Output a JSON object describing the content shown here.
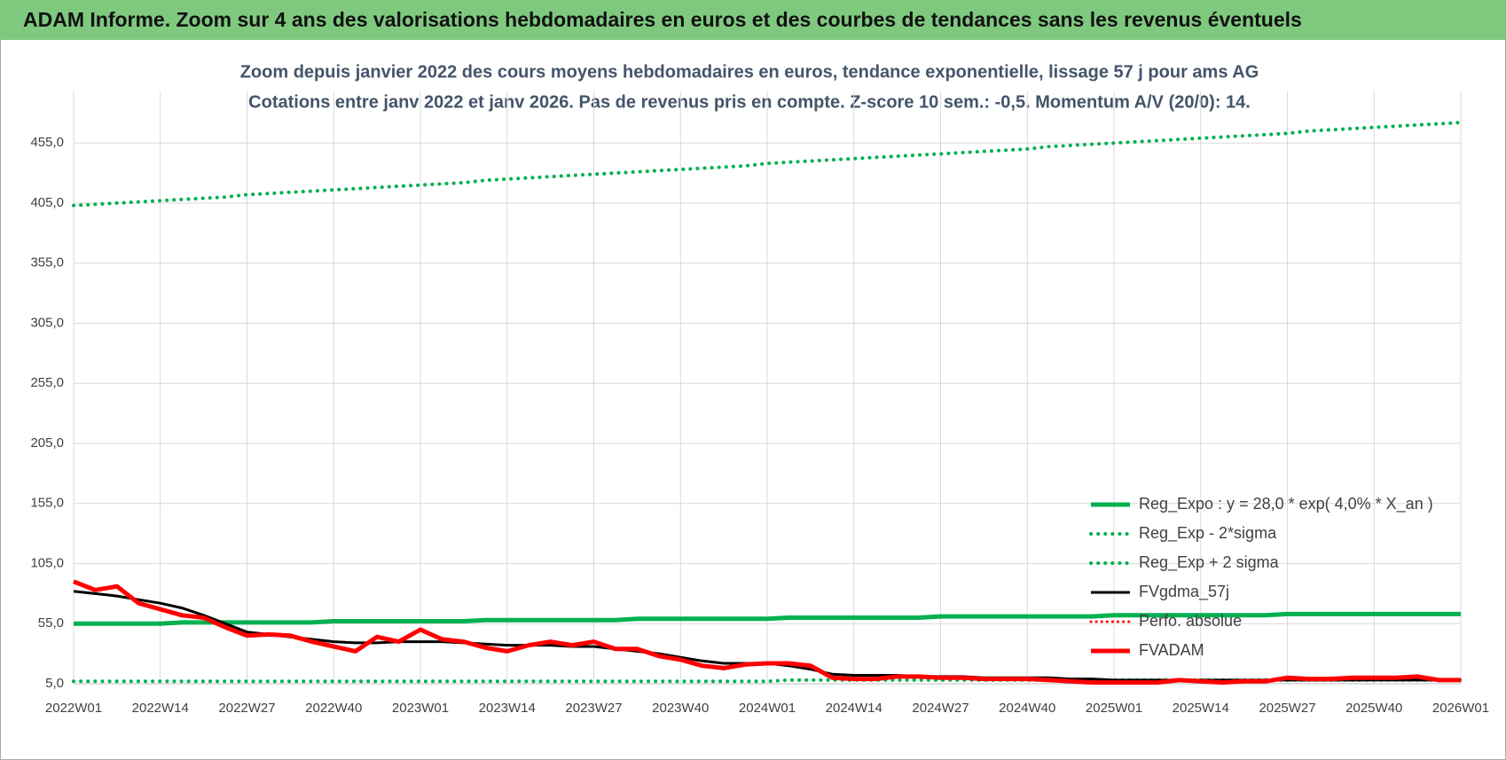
{
  "header": {
    "title": "ADAM Informe. Zoom sur 4 ans des valorisations hebdomadaires en euros et des courbes de tendances sans les revenus éventuels"
  },
  "chart_data": {
    "type": "line",
    "title": "Zoom depuis janvier 2022 des cours moyens hebdomadaires en euros, tendance exponentielle, lissage 57 j pour ams AG",
    "subtitle": "Cotations entre janv 2022 et janv 2026. Pas de revenus pris en compte. Z-score 10 sem.: -0,5. Momentum A/V (20/0): 14.",
    "categories": [
      "2022W01",
      null,
      null,
      null,
      "2022W14",
      null,
      null,
      null,
      "2022W27",
      null,
      null,
      null,
      "2022W40",
      null,
      null,
      null,
      "2023W01",
      null,
      null,
      null,
      "2023W14",
      null,
      null,
      null,
      "2023W27",
      null,
      null,
      null,
      "2023W40",
      null,
      null,
      null,
      "2024W01",
      null,
      null,
      null,
      "2024W14",
      null,
      null,
      null,
      "2024W27",
      null,
      null,
      null,
      "2024W40",
      null,
      null,
      null,
      "2025W01",
      null,
      null,
      null,
      "2025W14",
      null,
      null,
      null,
      "2025W27",
      null,
      null,
      null,
      "2025W40",
      null,
      null,
      null,
      "2026W01"
    ],
    "ylim": [
      5,
      498
    ],
    "yticks": [
      {
        "value": 5,
        "label": "5,0"
      },
      {
        "value": 55,
        "label": "55,0"
      },
      {
        "value": 105,
        "label": "105,0"
      },
      {
        "value": 155,
        "label": "155,0"
      },
      {
        "value": 205,
        "label": "205,0"
      },
      {
        "value": 255,
        "label": "255,0"
      },
      {
        "value": 305,
        "label": "305,0"
      },
      {
        "value": 355,
        "label": "355,0"
      },
      {
        "value": 405,
        "label": "405,0"
      },
      {
        "value": 455,
        "label": "455,0"
      }
    ],
    "grid": true,
    "legend": "lower right",
    "series": [
      {
        "name": "Reg_Expo : y = 28,0 * exp( 4,0% *  X_an )",
        "color": "#00b050",
        "style": "solid",
        "width": 5,
        "values": [
          55,
          55,
          55,
          55,
          55,
          56,
          56,
          56,
          56,
          56,
          56,
          56,
          57,
          57,
          57,
          57,
          57,
          57,
          57,
          58,
          58,
          58,
          58,
          58,
          58,
          58,
          59,
          59,
          59,
          59,
          59,
          59,
          59,
          60,
          60,
          60,
          60,
          60,
          60,
          60,
          61,
          61,
          61,
          61,
          61,
          61,
          61,
          61,
          62,
          62,
          62,
          62,
          62,
          62,
          62,
          62,
          63,
          63,
          63,
          63,
          63,
          63,
          63,
          63,
          63
        ]
      },
      {
        "name": "Reg_Exp - 2*sigma",
        "color": "#00b050",
        "style": "dotted",
        "width": 4,
        "values": [
          7,
          7,
          7,
          7,
          7,
          7,
          7,
          7,
          7,
          7,
          7,
          7,
          7,
          7,
          7,
          7,
          7,
          7,
          7,
          7,
          7,
          7,
          7,
          7,
          7,
          7,
          7,
          7,
          7,
          7,
          7,
          7,
          7,
          8,
          8,
          8,
          8,
          8,
          8,
          8,
          8,
          8,
          8,
          8,
          8,
          8,
          8,
          8,
          8,
          8,
          8,
          8,
          8,
          8,
          8,
          8,
          8,
          8,
          8,
          8,
          8,
          8,
          8,
          8,
          8
        ]
      },
      {
        "name": "Reg_Exp + 2 sigma",
        "color": "#00b050",
        "style": "dotted",
        "width": 4,
        "values": [
          403,
          404,
          405,
          406,
          407,
          408,
          409,
          410,
          412,
          413,
          414,
          415,
          416,
          417,
          418,
          419,
          420,
          421,
          422,
          424,
          425,
          426,
          427,
          428,
          429,
          430,
          431,
          432,
          433,
          434,
          435,
          436,
          438,
          439,
          440,
          441,
          442,
          443,
          444,
          445,
          446,
          447,
          448,
          449,
          450,
          452,
          453,
          454,
          455,
          456,
          457,
          458,
          459,
          460,
          461,
          462,
          463,
          465,
          466,
          467,
          468,
          469,
          470,
          471,
          472
        ]
      },
      {
        "name": "FVgdma_57j",
        "color": "#000000",
        "style": "solid",
        "width": 3,
        "values": [
          82,
          80,
          78,
          75,
          72,
          68,
          62,
          55,
          48,
          46,
          44,
          42,
          40,
          39,
          39,
          40,
          40,
          40,
          39,
          38,
          37,
          37,
          37,
          36,
          36,
          34,
          32,
          30,
          27,
          24,
          22,
          22,
          22,
          20,
          17,
          13,
          12,
          12,
          12,
          11,
          11,
          11,
          10,
          10,
          10,
          10,
          9,
          9,
          8,
          8,
          8,
          8,
          8,
          8,
          8,
          8,
          8,
          8,
          8,
          8,
          8,
          8,
          8,
          8,
          8
        ]
      },
      {
        "name": "Perfo. absolue",
        "color": "#ff0000",
        "style": "dotted",
        "width": 3,
        "values": [
          null,
          null,
          null,
          null,
          null,
          null,
          null,
          null,
          null,
          null,
          null,
          null,
          null,
          null,
          null,
          null,
          null,
          null,
          null,
          null,
          null,
          null,
          null,
          null,
          null,
          null,
          null,
          null,
          null,
          null,
          null,
          null,
          null,
          null,
          null,
          null,
          null,
          null,
          null,
          null,
          null,
          null,
          null,
          null,
          null,
          null,
          null,
          null,
          null,
          null,
          null,
          null,
          null,
          null,
          null,
          null,
          null,
          null,
          null,
          null,
          null,
          null,
          null,
          null,
          null
        ]
      },
      {
        "name": "FVADAM",
        "color": "#ff0000",
        "style": "solid",
        "width": 5,
        "values": [
          90,
          83,
          86,
          72,
          67,
          62,
          60,
          52,
          45,
          46,
          45,
          40,
          36,
          32,
          44,
          40,
          50,
          42,
          40,
          35,
          32,
          37,
          40,
          37,
          40,
          34,
          34,
          28,
          25,
          20,
          18,
          21,
          22,
          22,
          20,
          10,
          9,
          9,
          11,
          11,
          10,
          10,
          9,
          9,
          9,
          8,
          7,
          6,
          6,
          6,
          6,
          8,
          7,
          6,
          7,
          7,
          10,
          9,
          9,
          10,
          10,
          10,
          11,
          8,
          8
        ]
      }
    ]
  }
}
